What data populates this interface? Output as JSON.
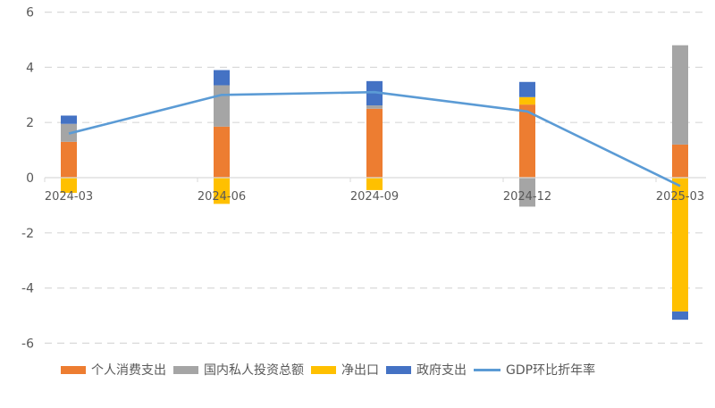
{
  "chart_data": {
    "type": "bar",
    "subtype": "stacked-bar-with-line",
    "title": "",
    "xlabel": "",
    "ylabel": "",
    "ylim": [
      -6,
      6
    ],
    "yticks": [
      6,
      4,
      2,
      0,
      -2,
      -4,
      -6
    ],
    "grid": "horizontal-dashed",
    "legend_position": "bottom",
    "categories": [
      "2024-03",
      "2024-06",
      "2024-09",
      "2024-12",
      "2025-03"
    ],
    "series": [
      {
        "name": "个人消费支出",
        "type": "bar",
        "color": "#ED7D31",
        "values": [
          1.3,
          1.85,
          2.5,
          2.65,
          1.2
        ]
      },
      {
        "name": "国内私人投资总额",
        "type": "bar",
        "color": "#A5A5A5",
        "values": [
          0.65,
          1.5,
          0.12,
          -1.05,
          3.6
        ]
      },
      {
        "name": "净出口",
        "type": "bar",
        "color": "#FFC000",
        "values": [
          -0.55,
          -0.95,
          -0.45,
          0.27,
          -4.85
        ]
      },
      {
        "name": "政府支出",
        "type": "bar",
        "color": "#4472C4",
        "values": [
          0.3,
          0.55,
          0.88,
          0.55,
          -0.3
        ]
      },
      {
        "name": "GDP环比折年率",
        "type": "line",
        "color": "#5B9BD5",
        "values": [
          1.6,
          3.0,
          3.1,
          2.4,
          -0.3
        ]
      }
    ]
  },
  "legend": [
    {
      "label": "个人消费支出",
      "color": "#ED7D31",
      "kind": "box"
    },
    {
      "label": "国内私人投资总额",
      "color": "#A5A5A5",
      "kind": "box"
    },
    {
      "label": "净出口",
      "color": "#FFC000",
      "kind": "box"
    },
    {
      "label": "政府支出",
      "color": "#4472C4",
      "kind": "box"
    },
    {
      "label": "GDP环比折年率",
      "color": "#5B9BD5",
      "kind": "line"
    }
  ]
}
